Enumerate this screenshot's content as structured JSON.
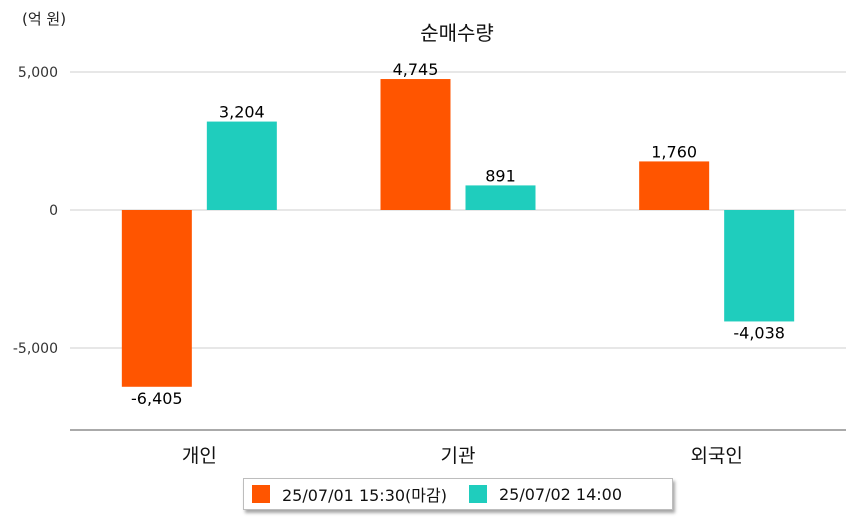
{
  "chart_data": {
    "type": "bar",
    "title": "순매수량",
    "unit_label": "(억 원)",
    "categories": [
      "개인",
      "기관",
      "외국인"
    ],
    "series": [
      {
        "name": "25/07/01 15:30(마감)",
        "color": "#ff5500",
        "values": [
          -6405,
          4745,
          1760
        ],
        "labels": [
          "-6,405",
          "4,745",
          "1,760"
        ]
      },
      {
        "name": "25/07/02 14:00",
        "color": "#1fcdbd",
        "values": [
          3204,
          891,
          -4038
        ],
        "labels": [
          "3,204",
          "891",
          "-4,038"
        ]
      }
    ],
    "yticks": [
      5000,
      0,
      -5000
    ],
    "ytick_labels": [
      "5,000",
      "0",
      "-5,000"
    ],
    "ylim": [
      -8000,
      5000
    ],
    "grid": true,
    "legend_position": "bottom"
  }
}
